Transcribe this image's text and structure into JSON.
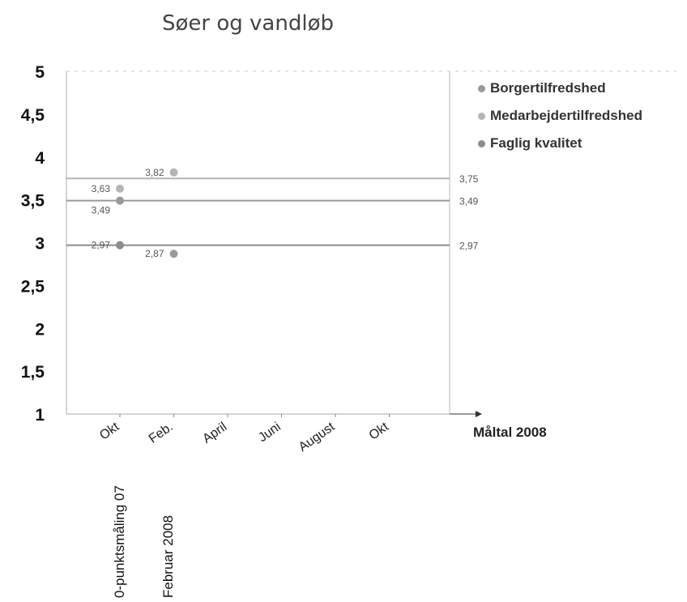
{
  "chart_data": {
    "type": "scatter",
    "title": "Søer og vandløb",
    "xlabel": "Måltal 2008",
    "ylabel": "",
    "ylim": [
      1,
      5
    ],
    "yticks": [
      "1",
      "1,5",
      "2",
      "2,5",
      "3",
      "3,5",
      "4",
      "4,5",
      "5"
    ],
    "categories": [
      "Okt",
      "Feb.",
      "April",
      "Juni",
      "August",
      "Okt"
    ],
    "period_labels": [
      "0-punktsmåling 07",
      "Februar 2008"
    ],
    "grid": false,
    "legend_position": "right",
    "series": [
      {
        "name": "Borgertilfredshed",
        "color": "#9a9a9a",
        "points": [
          {
            "x": "Okt",
            "y": 3.49,
            "label": "3,49"
          },
          {
            "x": "Feb.",
            "y": 2.87,
            "label": "2,87"
          }
        ],
        "target": 3.49,
        "target_label": "3,49"
      },
      {
        "name": "Medarbejdertilfredshed",
        "color": "#b5b5b5",
        "points": [
          {
            "x": "Okt",
            "y": 3.63,
            "label": "3,63"
          },
          {
            "x": "Feb.",
            "y": 3.82,
            "label": "3,82"
          }
        ],
        "target": 3.75,
        "target_label": "3,75"
      },
      {
        "name": "Faglig kvalitet",
        "color": "#8c8c8c",
        "points": [
          {
            "x": "Okt",
            "y": 2.97,
            "label": "2,97"
          }
        ],
        "target": 2.97,
        "target_label": "2,97"
      }
    ]
  }
}
